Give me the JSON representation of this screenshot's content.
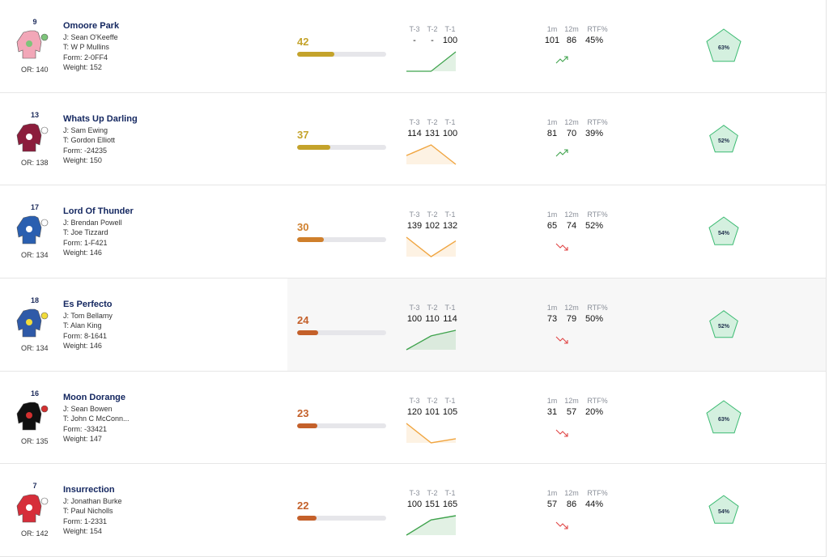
{
  "column_labels": {
    "t3": "T-3",
    "t2": "T-2",
    "t1": "T-1",
    "m1": "1m",
    "m12": "12m",
    "rtf": "RTF%"
  },
  "runners": [
    {
      "cloth": "9",
      "name": "Omoore Park",
      "jockey": "J: Sean O'Keeffe",
      "trainer": "T: W P Mullins",
      "form": "Form: 2-0FF4",
      "weight": "Weight: 152",
      "or": "OR: 140",
      "score": 42,
      "score_color": "#c4a32b",
      "t": [
        "-",
        "-",
        100
      ],
      "m1": 101,
      "m12": 86,
      "rtf": "45%",
      "rating": {
        "value": 63,
        "label": "63%"
      },
      "silk": [
        "#f2a7b8",
        "#7dc47a"
      ]
    },
    {
      "cloth": "13",
      "name": "Whats Up Darling",
      "jockey": "J: Sam Ewing",
      "trainer": "T: Gordon Elliott",
      "form": "Form: -24235",
      "weight": "Weight: 150",
      "or": "OR: 138",
      "score": 37,
      "score_color": "#c4a32b",
      "t": [
        114,
        131,
        100
      ],
      "m1": 81,
      "m12": 70,
      "rtf": "39%",
      "rating": {
        "value": 52,
        "label": "52%"
      },
      "silk": [
        "#8c1d3c",
        "#ffffff"
      ]
    },
    {
      "cloth": "17",
      "name": "Lord Of Thunder",
      "jockey": "J: Brendan Powell",
      "trainer": "T: Joe Tizzard",
      "form": "Form: 1-F421",
      "weight": "Weight: 146",
      "or": "OR: 134",
      "score": 30,
      "score_color": "#cf7f2c",
      "t": [
        139,
        102,
        132
      ],
      "m1": 65,
      "m12": 74,
      "rtf": "52%",
      "rating": {
        "value": 54,
        "label": "54%"
      },
      "silk": [
        "#2a5fb0",
        "#ffffff"
      ]
    },
    {
      "cloth": "18",
      "name": "Es Perfecto",
      "jockey": "J: Tom Bellamy",
      "trainer": "T: Alan King",
      "form": "Form: 8-1641",
      "weight": "Weight: 146",
      "or": "OR: 134",
      "score": 24,
      "score_color": "#c4602a",
      "t": [
        100,
        110,
        114
      ],
      "m1": 73,
      "m12": 79,
      "rtf": "50%",
      "rating": {
        "value": 52,
        "label": "52%"
      },
      "silk": [
        "#2f5aa8",
        "#f2dc3a"
      ]
    },
    {
      "cloth": "16",
      "name": "Moon Dorange",
      "jockey": "J: Sean Bowen",
      "trainer": "T: John C McConn...",
      "form": "Form: -33421",
      "weight": "Weight: 147",
      "or": "OR: 135",
      "score": 23,
      "score_color": "#c4602a",
      "t": [
        120,
        101,
        105
      ],
      "m1": 31,
      "m12": 57,
      "rtf": "20%",
      "rating": {
        "value": 63,
        "label": "63%"
      },
      "silk": [
        "#111111",
        "#d33030"
      ]
    },
    {
      "cloth": "7",
      "name": "Insurrection",
      "jockey": "J: Jonathan Burke",
      "trainer": "T: Paul Nicholls",
      "form": "Form: 1-2331",
      "weight": "Weight: 154",
      "or": "OR: 142",
      "score": 22,
      "score_color": "#c4602a",
      "t": [
        100,
        151,
        165
      ],
      "m1": 57,
      "m12": 86,
      "rtf": "44%",
      "rating": {
        "value": 54,
        "label": "54%"
      },
      "silk": [
        "#d62e3a",
        "#ffffff"
      ]
    }
  ]
}
